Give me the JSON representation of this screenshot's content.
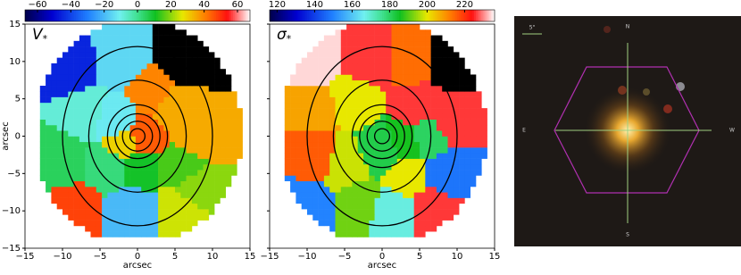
{
  "chart_data": [
    {
      "type": "binned-map",
      "label": "V",
      "label_sub": "*",
      "xlabel": "arcsec",
      "ylabel": "arcsec",
      "xlim": [
        -15,
        15
      ],
      "ylim": [
        -15,
        15
      ],
      "xticks": [
        {
          "value": -15,
          "label": "−15"
        },
        {
          "value": -10,
          "label": "−10"
        },
        {
          "value": -5,
          "label": "−5"
        },
        0,
        5,
        10,
        15
      ],
      "yticks": [
        {
          "value": -15,
          "label": "−15"
        },
        {
          "value": -10,
          "label": "−10"
        },
        {
          "value": -5,
          "label": "−5"
        },
        0,
        5,
        10,
        15
      ],
      "clim": [
        -67.5,
        67.5
      ],
      "cticks": [
        {
          "value": -60,
          "label": "−60"
        },
        {
          "value": -40,
          "label": "−40"
        },
        {
          "value": -20,
          "label": "−20"
        },
        0,
        20,
        40,
        60
      ],
      "over_color": "#000000",
      "x": [
        -9,
        -2,
        6,
        -10,
        -7,
        -3,
        -4,
        5,
        8,
        6,
        0,
        8,
        -8,
        -1,
        6,
        1,
        -2,
        2
      ],
      "y": [
        9,
        10,
        10,
        -3,
        3,
        2,
        -4,
        4,
        0,
        -4,
        -4,
        -7,
        -10,
        -10,
        -10,
        0,
        -1,
        6
      ],
      "values": [
        -45,
        -15,
        80,
        5,
        -8,
        -12,
        2,
        35,
        35,
        15,
        10,
        20,
        48,
        -20,
        25,
        45,
        30,
        40
      ]
    },
    {
      "type": "binned-map",
      "label": "σ",
      "label_sub": "*",
      "xlabel": "arcsec",
      "xlim": [
        -15,
        15
      ],
      "ylim": [
        -15,
        15
      ],
      "xticks": [
        {
          "value": -15,
          "label": "−15"
        },
        {
          "value": -10,
          "label": "−10"
        },
        {
          "value": -5,
          "label": "−5"
        },
        0,
        5,
        10,
        15
      ],
      "yticks": [
        {
          "value": -15,
          "label": "−15"
        },
        {
          "value": -10,
          "label": "−10"
        },
        {
          "value": -5,
          "label": "−5"
        },
        0,
        5,
        10,
        15
      ],
      "clim": [
        116,
        236
      ],
      "cticks": [
        120,
        140,
        160,
        180,
        200,
        220
      ],
      "over_color": "#000000",
      "x": [
        -9,
        -2,
        4,
        9,
        -9,
        -4,
        5,
        9,
        -9,
        -5,
        0,
        3,
        6,
        9,
        -10,
        -3,
        1,
        7,
        3
      ],
      "y": [
        10,
        10,
        10,
        10,
        4,
        5,
        4,
        2,
        -3,
        -4,
        -2,
        -1,
        0,
        -5,
        -9,
        -9,
        -10,
        -10,
        -5
      ],
      "values": [
        234,
        226,
        214,
        260,
        208,
        200,
        226,
        226,
        216,
        198,
        182,
        186,
        180,
        148,
        150,
        192,
        168,
        226,
        200
      ]
    }
  ],
  "image": {
    "north": "N",
    "south": "S",
    "east": "E",
    "west": "W",
    "scale": "5\""
  }
}
